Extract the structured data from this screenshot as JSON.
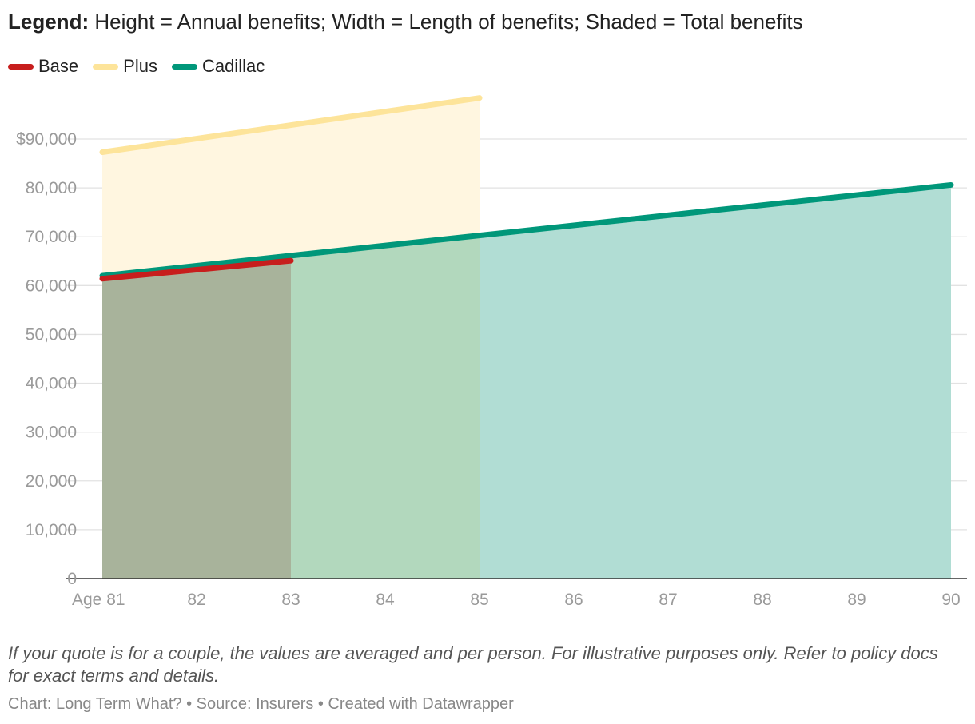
{
  "subtitle": {
    "bold": "Legend:",
    "rest": " Height = Annual benefits; Width = Length of benefits; Shaded = Total benefits"
  },
  "legend": [
    {
      "label": "Base",
      "color": "#c71e1d"
    },
    {
      "label": "Plus",
      "color": "#fde49a"
    },
    {
      "label": "Cadillac",
      "color": "#00977a"
    }
  ],
  "notes": "If your quote is for a couple, the values are averaged and per person. For illustrative purposes only. Refer to policy docs for exact terms and details.",
  "credit": "Chart: Long Term What? • Source: Insurers • Created with Datawrapper",
  "chart_data": {
    "type": "area",
    "x_tick_labels": [
      "Age 81",
      "82",
      "83",
      "84",
      "85",
      "86",
      "87",
      "88",
      "89",
      "90"
    ],
    "x_ticks": [
      81,
      82,
      83,
      84,
      85,
      86,
      87,
      88,
      89,
      90
    ],
    "xlim": [
      81,
      90
    ],
    "y_ticks": [
      0,
      10000,
      20000,
      30000,
      40000,
      50000,
      60000,
      70000,
      80000,
      90000
    ],
    "y_tick_labels": [
      "0",
      "10,000",
      "20,000",
      "30,000",
      "40,000",
      "50,000",
      "60,000",
      "70,000",
      "80,000",
      "$90,000"
    ],
    "ylim": [
      0,
      90000
    ],
    "grid": true,
    "series": [
      {
        "name": "Cadillac",
        "color": "#00977a",
        "fill": "#b1ddd4",
        "x": [
          81,
          90
        ],
        "y": [
          62000,
          80600
        ]
      },
      {
        "name": "Plus",
        "color": "#fde49a",
        "fill": "#fff6e0",
        "x": [
          81,
          85
        ],
        "y": [
          87300,
          98400
        ]
      },
      {
        "name": "Base",
        "color": "#c71e1d",
        "fill": "#a8b39b",
        "x": [
          81,
          83
        ],
        "y": [
          61400,
          65100
        ]
      }
    ],
    "overlap_fills": [
      {
        "between": [
          "Plus",
          "Cadillac"
        ],
        "x": [
          81,
          85
        ],
        "fill": "#b2d8bd"
      }
    ]
  }
}
